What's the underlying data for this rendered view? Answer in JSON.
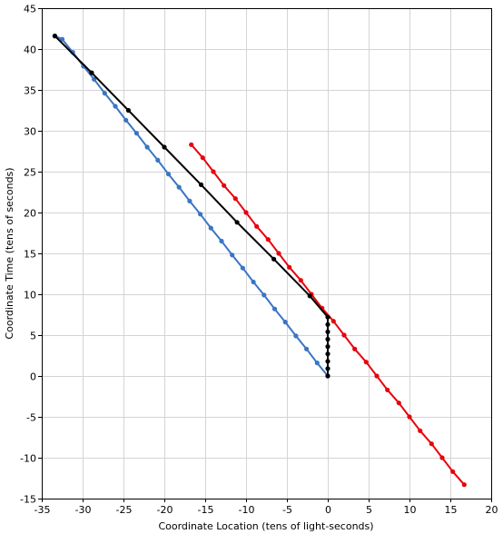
{
  "chart_data": {
    "type": "line",
    "xlabel": "Coordinate Location (tens of light-seconds)",
    "ylabel": "Coordinate Time (tens of seconds)",
    "xlim": [
      -35,
      20
    ],
    "ylim": [
      -15,
      45
    ],
    "xticks": [
      -35,
      -30,
      -25,
      -20,
      -15,
      -10,
      -5,
      0,
      5,
      10,
      15,
      20
    ],
    "yticks": [
      -15,
      -10,
      -5,
      0,
      5,
      10,
      15,
      20,
      25,
      30,
      35,
      40,
      45
    ],
    "grid": true,
    "series": [
      {
        "color": "#e8000b",
        "x": [
          -16.7,
          -15.3,
          -14.0,
          -12.7,
          -11.3,
          -10.0,
          -8.7,
          -7.3,
          -6.0,
          -4.7,
          -3.3,
          -2.0,
          -0.7,
          0.7,
          2.0,
          3.3,
          4.7,
          6.0,
          7.3,
          8.7,
          10.0,
          11.3,
          12.7,
          14.0,
          15.3,
          16.7
        ],
        "y": [
          28.3,
          26.7,
          25.0,
          23.3,
          21.7,
          20.0,
          18.3,
          16.7,
          15.0,
          13.3,
          11.7,
          10.0,
          8.3,
          6.7,
          5.0,
          3.3,
          1.7,
          0.0,
          -1.7,
          -3.3,
          -5.0,
          -6.7,
          -8.3,
          -10.0,
          -11.7,
          -13.3
        ]
      },
      {
        "color": "#3a75c4",
        "x": [
          0.0,
          -1.3,
          -2.6,
          -3.9,
          -5.2,
          -6.5,
          -7.8,
          -9.1,
          -10.4,
          -11.7,
          -13.0,
          -14.3,
          -15.6,
          -16.9,
          -18.2,
          -19.5,
          -20.8,
          -22.1,
          -23.4,
          -24.7,
          -26.0,
          -27.3,
          -28.6,
          -29.9,
          -31.2,
          -32.5,
          -33.4
        ],
        "y": [
          0.0,
          1.6,
          3.3,
          4.9,
          6.6,
          8.2,
          9.9,
          11.5,
          13.2,
          14.8,
          16.5,
          18.1,
          19.8,
          21.4,
          23.1,
          24.7,
          26.4,
          28.0,
          29.7,
          31.3,
          33.0,
          34.6,
          36.3,
          37.9,
          39.6,
          41.2,
          41.6
        ]
      },
      {
        "color": "#000000",
        "x": [
          0.0,
          0.0,
          0.0,
          0.0,
          0.0,
          0.0,
          0.0,
          0.0,
          0.0,
          -2.2,
          -6.6,
          -11.1,
          -15.5,
          -20.0,
          -24.4,
          -28.9,
          -33.4
        ],
        "y": [
          0.0,
          0.9,
          1.8,
          2.7,
          3.6,
          4.5,
          5.4,
          6.3,
          7.2,
          9.8,
          14.3,
          18.8,
          23.4,
          28.0,
          32.5,
          37.1,
          41.6
        ]
      }
    ]
  }
}
